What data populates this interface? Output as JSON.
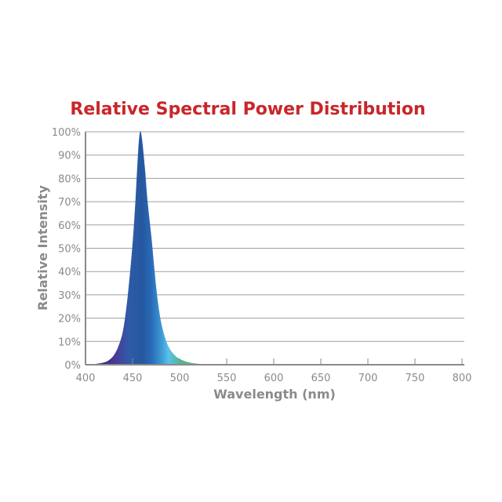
{
  "chart_data": {
    "type": "area",
    "title": "Relative Spectral Power Distribution",
    "xlabel": "Wavelength (nm)",
    "ylabel": "Relative Intensity",
    "xlim": [
      400,
      800
    ],
    "ylim": [
      0,
      100
    ],
    "grid": true,
    "x_ticks": [
      "400",
      "450",
      "500",
      "550",
      "600",
      "650",
      "700",
      "750",
      "800"
    ],
    "y_ticks": [
      "0%",
      "10%",
      "20%",
      "30%",
      "40%",
      "50%",
      "60%",
      "70%",
      "80%",
      "90%",
      "100%"
    ],
    "series": [
      {
        "name": "Relative Intensity",
        "x": [
          400,
          410,
          420,
          425,
          430,
          435,
          440,
          445,
          450,
          453,
          456,
          458,
          460,
          463,
          466,
          470,
          473,
          476,
          480,
          485,
          490,
          495,
          500,
          510,
          520,
          530,
          540
        ],
        "y": [
          0,
          0.3,
          1,
          2,
          4,
          8,
          15,
          30,
          52,
          70,
          92,
          100,
          97,
          85,
          70,
          55,
          42,
          30,
          19,
          11,
          6.5,
          4,
          2.5,
          1,
          0.4,
          0.1,
          0
        ]
      }
    ],
    "colors": {
      "title": "#c8262a",
      "axis": "#8a8a8a",
      "grid": "#a0a0a0"
    }
  }
}
